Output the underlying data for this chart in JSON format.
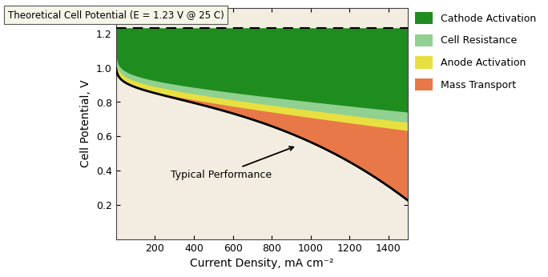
{
  "theoretical_potential": 1.23,
  "x_max": 1500,
  "x_min": 0,
  "y_min": 0.0,
  "y_max": 1.35,
  "xlabel": "Current Density, mA cm⁻²",
  "ylabel": "Cell Potential, V",
  "title_box": "Theoretical Cell Potential (E = 1.23 V @ 25 C)",
  "annotation_text": "Typical Performance",
  "bg_color": "#f2ede0",
  "cathode_color": "#1f8c1f",
  "cell_resistance_color": "#90d090",
  "anode_color": "#e8e040",
  "mass_transport_color": "#e87848",
  "legend_labels": [
    "Cathode Activation",
    "Cell Resistance",
    "Anode Activation",
    "Mass Transport"
  ],
  "xticks": [
    200,
    400,
    600,
    800,
    1000,
    1200,
    1400
  ],
  "yticks": [
    0.2,
    0.4,
    0.6,
    0.8,
    1.0,
    1.2
  ]
}
